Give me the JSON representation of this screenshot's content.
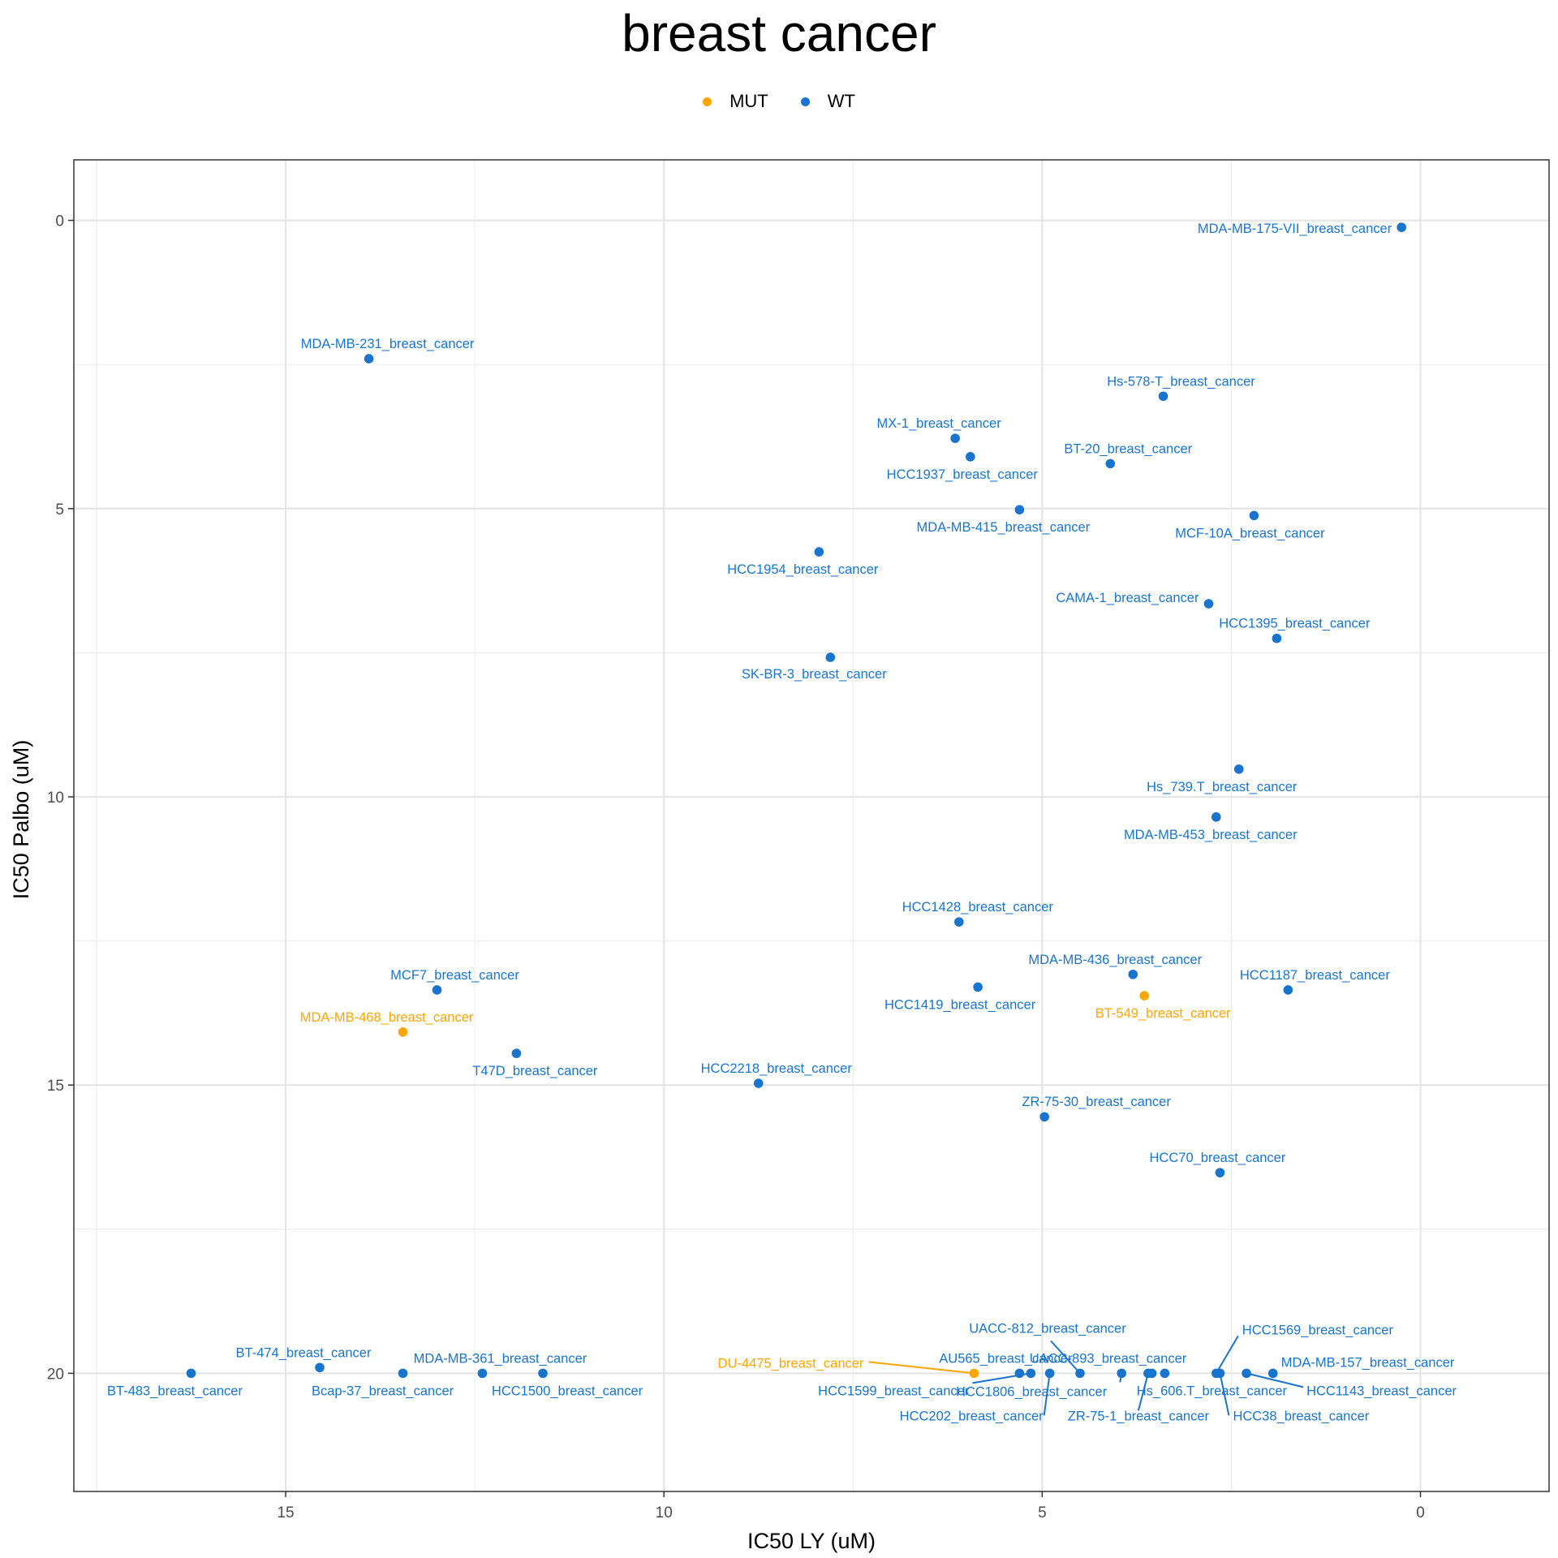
{
  "chart_data": {
    "type": "scatter",
    "title": "breast cancer",
    "xlabel": "IC50 LY (uM)",
    "ylabel": "IC50 Palbo (uM)",
    "x_reversed": true,
    "y_reversed": true,
    "xlim": [
      17.8,
      -1.7
    ],
    "ylim": [
      -1.05,
      22.05
    ],
    "x_ticks": [
      15,
      10,
      5,
      0
    ],
    "y_ticks": [
      0,
      5,
      10,
      15,
      20
    ],
    "grid": true,
    "legend_position": "top",
    "series": [
      {
        "name": "MUT",
        "color": "#FFA500"
      },
      {
        "name": "WT",
        "color": "#1874CD"
      }
    ],
    "points": [
      {
        "label": "MDA-MB-175-VII_breast_cancer",
        "x": 0.25,
        "y": 0.12,
        "group": "WT"
      },
      {
        "label": "MDA-MB-231_breast_cancer",
        "x": 13.9,
        "y": 2.4,
        "group": "WT"
      },
      {
        "label": "Hs-578-T_breast_cancer",
        "x": 3.4,
        "y": 3.05,
        "group": "WT"
      },
      {
        "label": "MX-1_breast_cancer",
        "x": 6.15,
        "y": 3.78,
        "group": "WT"
      },
      {
        "label": "HCC1937_breast_cancer",
        "x": 5.95,
        "y": 4.1,
        "group": "WT"
      },
      {
        "label": "BT-20_breast_cancer",
        "x": 4.1,
        "y": 4.22,
        "group": "WT"
      },
      {
        "label": "MDA-MB-415_breast_cancer",
        "x": 5.3,
        "y": 5.02,
        "group": "WT"
      },
      {
        "label": "MCF-10A_breast_cancer",
        "x": 2.2,
        "y": 5.12,
        "group": "WT"
      },
      {
        "label": "HCC1954_breast_cancer",
        "x": 7.95,
        "y": 5.75,
        "group": "WT"
      },
      {
        "label": "CAMA-1_breast_cancer",
        "x": 2.8,
        "y": 6.65,
        "group": "WT"
      },
      {
        "label": "HCC1395_breast_cancer",
        "x": 1.9,
        "y": 7.25,
        "group": "WT"
      },
      {
        "label": "SK-BR-3_breast_cancer",
        "x": 7.8,
        "y": 7.58,
        "group": "WT"
      },
      {
        "label": "Hs_739.T_breast_cancer",
        "x": 2.4,
        "y": 9.52,
        "group": "WT"
      },
      {
        "label": "MDA-MB-453_breast_cancer",
        "x": 2.7,
        "y": 10.35,
        "group": "WT"
      },
      {
        "label": "HCC1428_breast_cancer",
        "x": 6.1,
        "y": 12.17,
        "group": "WT"
      },
      {
        "label": "MDA-MB-436_breast_cancer",
        "x": 3.8,
        "y": 13.08,
        "group": "WT"
      },
      {
        "label": "HCC1187_breast_cancer",
        "x": 1.75,
        "y": 13.35,
        "group": "WT"
      },
      {
        "label": "HCC1419_breast_cancer",
        "x": 5.85,
        "y": 13.3,
        "group": "WT"
      },
      {
        "label": "BT-549_breast_cancer",
        "x": 3.65,
        "y": 13.45,
        "group": "MUT"
      },
      {
        "label": "MCF7_breast_cancer",
        "x": 13.0,
        "y": 13.35,
        "group": "WT"
      },
      {
        "label": "MDA-MB-468_breast_cancer",
        "x": 13.45,
        "y": 14.08,
        "group": "MUT"
      },
      {
        "label": "T47D_breast_cancer",
        "x": 11.95,
        "y": 14.45,
        "group": "WT"
      },
      {
        "label": "HCC2218_breast_cancer",
        "x": 8.75,
        "y": 14.97,
        "group": "WT"
      },
      {
        "label": "ZR-75-30_breast_cancer",
        "x": 4.97,
        "y": 15.55,
        "group": "WT"
      },
      {
        "label": "HCC70_breast_cancer",
        "x": 2.65,
        "y": 16.52,
        "group": "WT"
      },
      {
        "label": "BT-483_breast_cancer",
        "x": 16.25,
        "y": 20.0,
        "group": "WT"
      },
      {
        "label": "BT-474_breast_cancer",
        "x": 14.55,
        "y": 19.9,
        "group": "WT"
      },
      {
        "label": "Bcap-37_breast_cancer",
        "x": 13.45,
        "y": 20.0,
        "group": "WT"
      },
      {
        "label": "MDA-MB-361_breast_cancer",
        "x": 12.4,
        "y": 20.0,
        "group": "WT"
      },
      {
        "label": "HCC1500_breast_cancer",
        "x": 11.6,
        "y": 20.0,
        "group": "WT"
      },
      {
        "label": "DU-4475_breast_cancer",
        "x": 5.9,
        "y": 20.0,
        "group": "MUT"
      },
      {
        "label": "AU565_breast_cancer",
        "x": 5.3,
        "y": 20.0,
        "group": "WT"
      },
      {
        "label": "HCC1599_breast_cancer",
        "x": 5.15,
        "y": 20.0,
        "group": "WT"
      },
      {
        "label": "HCC202_breast_cancer",
        "x": 4.9,
        "y": 20.0,
        "group": "WT"
      },
      {
        "label": "UACC-812_breast_cancer",
        "x": 4.5,
        "y": 20.0,
        "group": "WT"
      },
      {
        "label": "HCC1806_breast_cancer",
        "x": 3.95,
        "y": 20.0,
        "group": "WT"
      },
      {
        "label": "ZR-75-1_breast_cancer",
        "x": 3.6,
        "y": 20.0,
        "group": "WT"
      },
      {
        "label": "UACC-893_breast_cancer",
        "x": 3.55,
        "y": 20.0,
        "group": "WT"
      },
      {
        "label": "Hs_606.T_breast_cancer",
        "x": 3.38,
        "y": 20.0,
        "group": "WT"
      },
      {
        "label": "HCC1569_breast_cancer",
        "x": 2.7,
        "y": 20.0,
        "group": "WT"
      },
      {
        "label": "HCC38_breast_cancer",
        "x": 2.65,
        "y": 20.0,
        "group": "WT"
      },
      {
        "label": "HCC1143_breast_cancer",
        "x": 2.3,
        "y": 20.0,
        "group": "WT"
      },
      {
        "label": "MDA-MB-157_breast_cancer",
        "x": 1.95,
        "y": 20.0,
        "group": "WT"
      }
    ]
  }
}
